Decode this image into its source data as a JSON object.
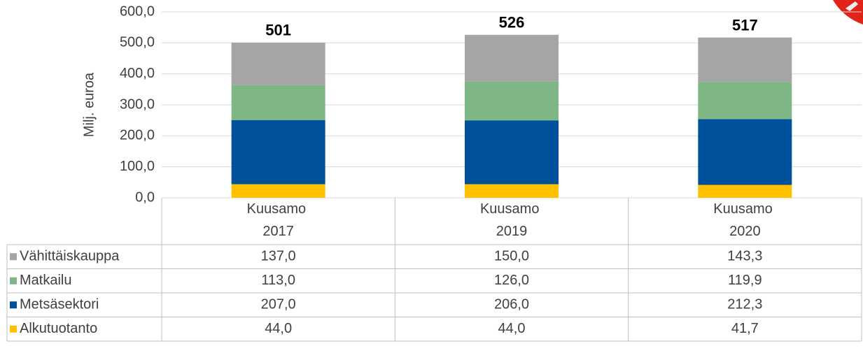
{
  "chart_data": {
    "type": "stacked_bar",
    "y_label": "Milj. euroa",
    "categories": [
      "Kuusamo 2017",
      "Kuusamo 2019",
      "Kuusamo 2020"
    ],
    "series": [
      {
        "name": "Alkutuotanto",
        "color": "#ffc000",
        "values": [
          44.0,
          44.0,
          41.7
        ],
        "value_labels": [
          "44,0",
          "44,0",
          "41,7"
        ]
      },
      {
        "name": "Metsäsektori",
        "color": "#00519c",
        "values": [
          207.0,
          206.0,
          212.3
        ],
        "value_labels": [
          "207,0",
          "206,0",
          "212,3"
        ]
      },
      {
        "name": "Matkailu",
        "color": "#7fb686",
        "values": [
          113.0,
          126.0,
          119.9
        ],
        "value_labels": [
          "113,0",
          "126,0",
          "119,9"
        ]
      },
      {
        "name": "Vähittäiskauppa",
        "color": "#a5a5a5",
        "values": [
          137.0,
          150.0,
          143.3
        ],
        "value_labels": [
          "137,0",
          "150,0",
          "143,3"
        ]
      }
    ],
    "totals": [
      501,
      526,
      517
    ],
    "ylim": [
      0,
      600
    ],
    "yticks": [
      {
        "value": 0,
        "label": "0,0"
      },
      {
        "value": 100,
        "label": "100,0"
      },
      {
        "value": 200,
        "label": "200,0"
      },
      {
        "value": 300,
        "label": "300,0"
      },
      {
        "value": 400,
        "label": "400,0"
      },
      {
        "value": 500,
        "label": "500,0"
      },
      {
        "value": 600,
        "label": "600,0"
      }
    ],
    "grid": true
  }
}
